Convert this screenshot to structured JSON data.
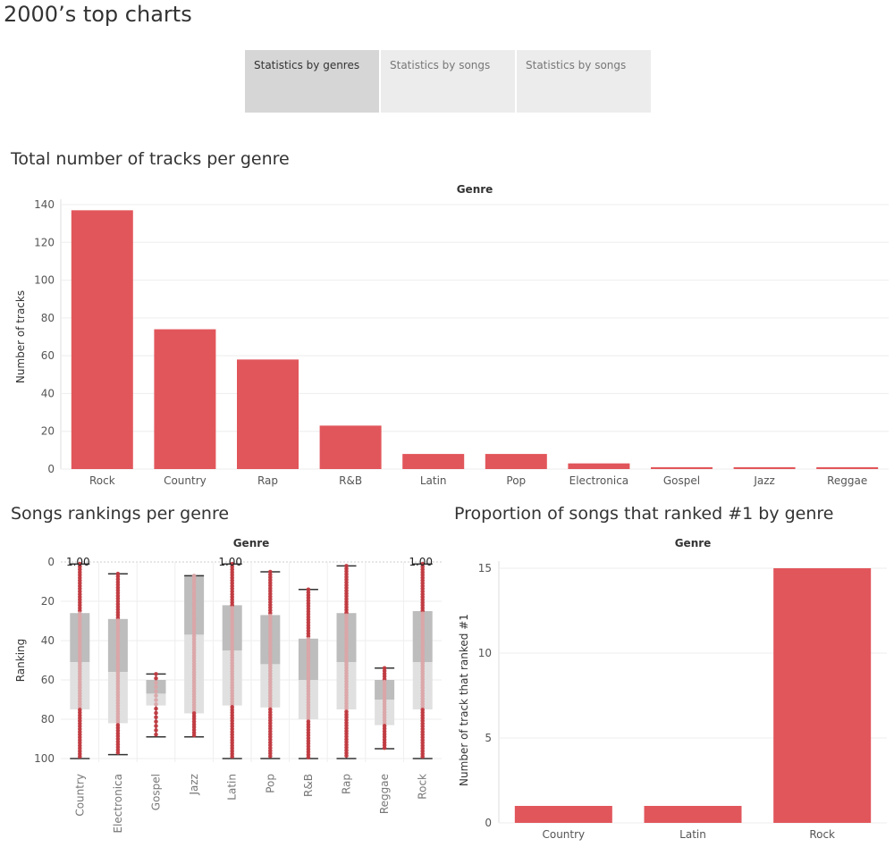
{
  "app": {
    "title": "2000’s top charts"
  },
  "tabs": [
    {
      "label": "Statistics by genres",
      "active": true
    },
    {
      "label": "Statistics by songs",
      "active": false
    },
    {
      "label": "Statistics by songs",
      "active": false
    }
  ],
  "colors": {
    "bar": "#e1565b",
    "dot": "#c1393f",
    "dot_light": "#dba5a8",
    "box_upper": "#bdbdbd",
    "box_lower": "#e0e0e0",
    "whisker": "#333333",
    "grid": "#eeeeee"
  },
  "chart_data": [
    {
      "type": "bar",
      "title": "Total number of tracks per genre",
      "header": "Genre",
      "ylabel": "Number of tracks",
      "ylim": [
        0,
        140
      ],
      "yticks": [
        0,
        20,
        40,
        60,
        80,
        100,
        120,
        140
      ],
      "categories": [
        "Rock",
        "Country",
        "Rap",
        "R&B",
        "Latin",
        "Pop",
        "Electronica",
        "Gospel",
        "Jazz",
        "Reggae"
      ],
      "values": [
        137,
        74,
        58,
        23,
        8,
        8,
        3,
        1,
        1,
        1
      ]
    },
    {
      "type": "boxplot",
      "title": "Songs rankings per genre",
      "header": "Genre",
      "ylabel": "Ranking",
      "ylim": [
        0,
        100
      ],
      "y_reversed": true,
      "yticks": [
        0,
        20,
        40,
        60,
        80,
        100
      ],
      "categories": [
        "Country",
        "Electronica",
        "Gospel",
        "Jazz",
        "Latin",
        "Pop",
        "R&B",
        "Rap",
        "Reggae",
        "Rock"
      ],
      "boxes": [
        {
          "min": 1,
          "q1": 26,
          "median": 51,
          "q3": 75,
          "max": 100,
          "label": "1.00"
        },
        {
          "min": 6,
          "q1": 29,
          "median": 56,
          "q3": 82,
          "max": 98,
          "label": ""
        },
        {
          "min": 57,
          "q1": 60,
          "median": 67,
          "q3": 73,
          "max": 89,
          "label": ""
        },
        {
          "min": 7,
          "q1": 7,
          "median": 37,
          "q3": 77,
          "max": 89,
          "label": ""
        },
        {
          "min": 1,
          "q1": 22,
          "median": 45,
          "q3": 73,
          "max": 100,
          "label": "1.00"
        },
        {
          "min": 5,
          "q1": 27,
          "median": 52,
          "q3": 74,
          "max": 100,
          "label": ""
        },
        {
          "min": 14,
          "q1": 39,
          "median": 60,
          "q3": 80,
          "max": 100,
          "label": ""
        },
        {
          "min": 2,
          "q1": 26,
          "median": 51,
          "q3": 75,
          "max": 100,
          "label": ""
        },
        {
          "min": 54,
          "q1": 60,
          "median": 70,
          "q3": 83,
          "max": 95,
          "label": ""
        },
        {
          "min": 1,
          "q1": 25,
          "median": 51,
          "q3": 75,
          "max": 100,
          "label": "1.00"
        }
      ]
    },
    {
      "type": "bar",
      "title": "Proportion of songs that ranked #1 by genre",
      "header": "Genre",
      "ylabel": "Number of track that ranked #1",
      "ylim": [
        0,
        15
      ],
      "yticks": [
        0,
        5,
        10,
        15
      ],
      "categories": [
        "Country",
        "Latin",
        "Rock"
      ],
      "values": [
        1,
        1,
        15
      ]
    }
  ]
}
